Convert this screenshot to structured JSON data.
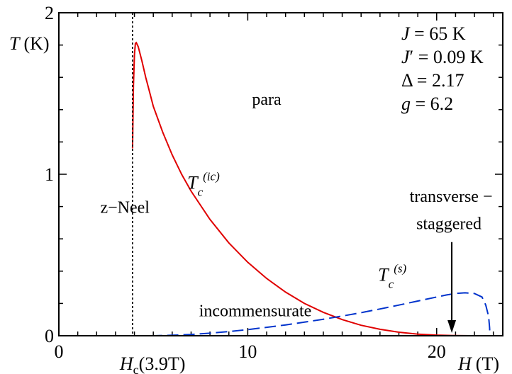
{
  "chart_data": {
    "type": "line",
    "title": "",
    "xlabel": {
      "var": "H",
      "unit": "(T)"
    },
    "ylabel": {
      "var": "T",
      "unit": "(K)"
    },
    "xlim": [
      0,
      23.5
    ],
    "ylim": [
      0,
      2
    ],
    "x_ticks": [
      0,
      10,
      20
    ],
    "y_ticks": [
      0,
      1,
      2
    ],
    "grid": false,
    "series": [
      {
        "id": "ic",
        "label_main": "T",
        "label_sub": "c",
        "label_sup": "(ic)",
        "color": "#e00000",
        "style": "solid",
        "points": [
          [
            3.9,
            1.16
          ],
          [
            3.95,
            1.55
          ],
          [
            4.0,
            1.74
          ],
          [
            4.05,
            1.81
          ],
          [
            4.1,
            1.815
          ],
          [
            4.2,
            1.79
          ],
          [
            4.4,
            1.7
          ],
          [
            4.6,
            1.6
          ],
          [
            4.8,
            1.51
          ],
          [
            5.0,
            1.42
          ],
          [
            5.5,
            1.26
          ],
          [
            6.0,
            1.12
          ],
          [
            6.5,
            1.0
          ],
          [
            7.0,
            0.895
          ],
          [
            8.0,
            0.72
          ],
          [
            9.0,
            0.575
          ],
          [
            10.0,
            0.455
          ],
          [
            11.0,
            0.355
          ],
          [
            12.0,
            0.27
          ],
          [
            13.0,
            0.2
          ],
          [
            14.0,
            0.145
          ],
          [
            15.0,
            0.1
          ],
          [
            16.0,
            0.065
          ],
          [
            17.0,
            0.04
          ],
          [
            18.0,
            0.022
          ],
          [
            19.0,
            0.01
          ],
          [
            20.0,
            0.004
          ],
          [
            21.0,
            0.001
          ],
          [
            22.0,
            0.0
          ]
        ]
      },
      {
        "id": "s",
        "label_main": "T",
        "label_sub": "c",
        "label_sup": "(s)",
        "color": "#0033cc",
        "style": "dashed",
        "points": [
          [
            4.0,
            0.0
          ],
          [
            5.0,
            0.0
          ],
          [
            6.0,
            0.003
          ],
          [
            7.0,
            0.008
          ],
          [
            8.0,
            0.016
          ],
          [
            9.0,
            0.026
          ],
          [
            10.0,
            0.038
          ],
          [
            11.0,
            0.052
          ],
          [
            12.0,
            0.067
          ],
          [
            13.0,
            0.084
          ],
          [
            14.0,
            0.102
          ],
          [
            15.0,
            0.122
          ],
          [
            16.0,
            0.143
          ],
          [
            17.0,
            0.166
          ],
          [
            18.0,
            0.19
          ],
          [
            19.0,
            0.215
          ],
          [
            20.0,
            0.24
          ],
          [
            20.5,
            0.252
          ],
          [
            21.0,
            0.262
          ],
          [
            21.5,
            0.266
          ],
          [
            22.0,
            0.262
          ],
          [
            22.4,
            0.24
          ],
          [
            22.6,
            0.19
          ],
          [
            22.75,
            0.12
          ],
          [
            22.8,
            0.05
          ],
          [
            22.82,
            0.0
          ]
        ]
      }
    ],
    "vertical_line": {
      "x": 3.9,
      "style": "dotted",
      "label": "H",
      "label_sub": "c",
      "label_rest": "(3.9T)"
    },
    "arrow": {
      "x": 20.8,
      "from_y": 0.58,
      "to_y": 0.0,
      "label_line1": "transverse −",
      "label_line2": "staggered"
    },
    "region_labels": [
      {
        "text": "para",
        "x": 11.0,
        "y": 1.43
      },
      {
        "text": "z−Neel",
        "x": 3.5,
        "y": 0.76
      },
      {
        "text": "incommensurate",
        "x": 10.4,
        "y": 0.12
      }
    ],
    "curve_label_positions": {
      "ic": {
        "x": 6.8,
        "y": 0.91
      },
      "s": {
        "x": 16.9,
        "y": 0.34
      }
    },
    "parameters": [
      {
        "var": "J",
        "prime": false,
        "rest": " = 65 K"
      },
      {
        "var": "J",
        "prime": true,
        "rest": " = 0.09 K"
      },
      {
        "var": "",
        "prime": false,
        "rest": "Δ = 2.17"
      },
      {
        "var": "g",
        "prime": false,
        "rest": " = 6.2"
      }
    ]
  }
}
